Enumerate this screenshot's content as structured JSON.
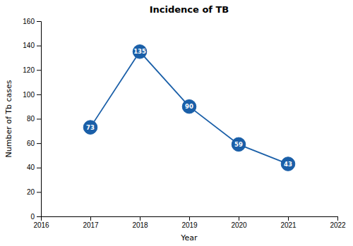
{
  "chart_data": {
    "type": "line",
    "title": "Incidence of TB",
    "xlabel": "Year",
    "ylabel": "Number of Tb cases",
    "x": [
      2017,
      2018,
      2019,
      2020,
      2021
    ],
    "values": [
      73,
      135,
      90,
      59,
      43
    ],
    "color": "#1a5fa8",
    "marker": "circle",
    "data_labels": true,
    "grid": false,
    "xlim": [
      2016,
      2022
    ],
    "xticks": [
      2016,
      2017,
      2018,
      2019,
      2020,
      2021,
      2022
    ],
    "ylim": [
      0,
      160
    ],
    "yticks": [
      0,
      20,
      40,
      60,
      80,
      100,
      120,
      140,
      160
    ]
  }
}
